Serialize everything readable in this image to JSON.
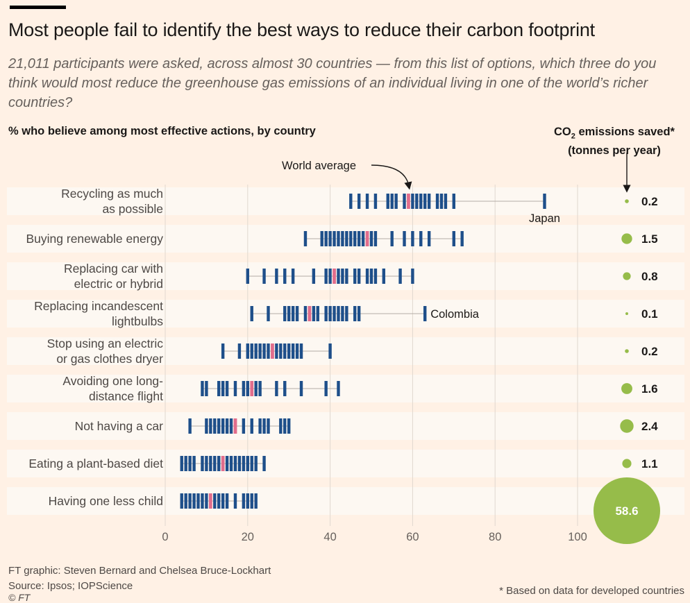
{
  "header": {
    "title": "Most people fail to identify the best ways to reduce their carbon footprint",
    "subtitle": "21,011 participants were asked, across almost 30 countries  — from this list of options, which three do you think would most reduce the greenhouse gas emissions of an individual living in one of the world’s richer countries?"
  },
  "chart_data": {
    "type": "strip",
    "title": "% who believe among most effective actions, by country",
    "xlim": [
      0,
      100
    ],
    "xticks": [
      "0",
      "20",
      "40",
      "60",
      "80",
      "100"
    ],
    "annotations": {
      "world_average": "World average",
      "japan": "Japan",
      "colombia": "Colombia"
    },
    "co2_header": {
      "line1_pre": "CO",
      "line1_sub": "2",
      "line1_post": " emissions saved*",
      "line2": "(tonnes per year)"
    },
    "colors": {
      "country": "#1e4f8a",
      "world_average": "#e16d8c",
      "bubble": "#96bc4a",
      "row_band": "#fdf8f2"
    },
    "rows": [
      {
        "label": [
          "Recycling as much",
          "as possible"
        ],
        "countries": [
          45,
          47,
          49,
          51,
          54,
          55,
          56,
          58,
          60,
          61,
          62,
          63,
          64,
          66,
          67,
          68,
          70,
          92
        ],
        "world_average": 59,
        "co2": 0.2,
        "co2_label": "0.2"
      },
      {
        "label": [
          "Buying renewable energy"
        ],
        "countries": [
          34,
          38,
          39,
          40,
          41,
          42,
          43,
          44,
          45,
          46,
          47,
          48,
          50,
          51,
          55,
          58,
          60,
          62,
          64,
          70,
          72
        ],
        "world_average": 49,
        "co2": 1.5,
        "co2_label": "1.5"
      },
      {
        "label": [
          "Replacing car with",
          "electric or hybrid"
        ],
        "countries": [
          20,
          24,
          27,
          29,
          31,
          36,
          39,
          40,
          42,
          43,
          44,
          46,
          47,
          49,
          50,
          51,
          53,
          57,
          60
        ],
        "world_average": 41,
        "co2": 0.8,
        "co2_label": "0.8"
      },
      {
        "label": [
          "Replacing incandescent",
          "lightbulbs"
        ],
        "countries": [
          21,
          25,
          29,
          30,
          31,
          32,
          34,
          36,
          37,
          39,
          40,
          41,
          42,
          43,
          44,
          46,
          47,
          63
        ],
        "world_average": 35,
        "co2": 0.1,
        "co2_label": "0.1"
      },
      {
        "label": [
          "Stop using an electric",
          "or gas clothes dryer"
        ],
        "countries": [
          14,
          18,
          20,
          21,
          22,
          23,
          24,
          25,
          27,
          28,
          29,
          30,
          31,
          32,
          33,
          40
        ],
        "world_average": 26,
        "co2": 0.2,
        "co2_label": "0.2"
      },
      {
        "label": [
          "Avoiding one long-",
          "distance flight"
        ],
        "countries": [
          9,
          10,
          13,
          14,
          15,
          17,
          19,
          20,
          22,
          23,
          27,
          29,
          33,
          39,
          42
        ],
        "world_average": 21,
        "co2": 1.6,
        "co2_label": "1.6"
      },
      {
        "label": [
          "Not having a car"
        ],
        "countries": [
          6,
          10,
          11,
          12,
          13,
          14,
          15,
          16,
          19,
          21,
          23,
          24,
          25,
          28,
          29,
          30
        ],
        "world_average": 17,
        "co2": 2.4,
        "co2_label": "2.4"
      },
      {
        "label": [
          "Eating a plant-based diet"
        ],
        "countries": [
          4,
          5,
          6,
          7,
          9,
          10,
          11,
          12,
          13,
          15,
          16,
          17,
          18,
          19,
          20,
          21,
          22,
          24
        ],
        "world_average": 14,
        "co2": 1.1,
        "co2_label": "1.1"
      },
      {
        "label": [
          "Having one less child"
        ],
        "countries": [
          4,
          5,
          6,
          7,
          8,
          9,
          10,
          12,
          13,
          14,
          15,
          17,
          19,
          20,
          21,
          22
        ],
        "world_average": 11,
        "co2": 58.6,
        "co2_label": "58.6"
      }
    ]
  },
  "footer": {
    "credit": "FT graphic: Steven Bernard and Chelsea Bruce-Lockhart",
    "source": "Source: Ipsos; IOPScience",
    "copyright": "© FT",
    "footnote": "* Based on data for developed countries"
  }
}
